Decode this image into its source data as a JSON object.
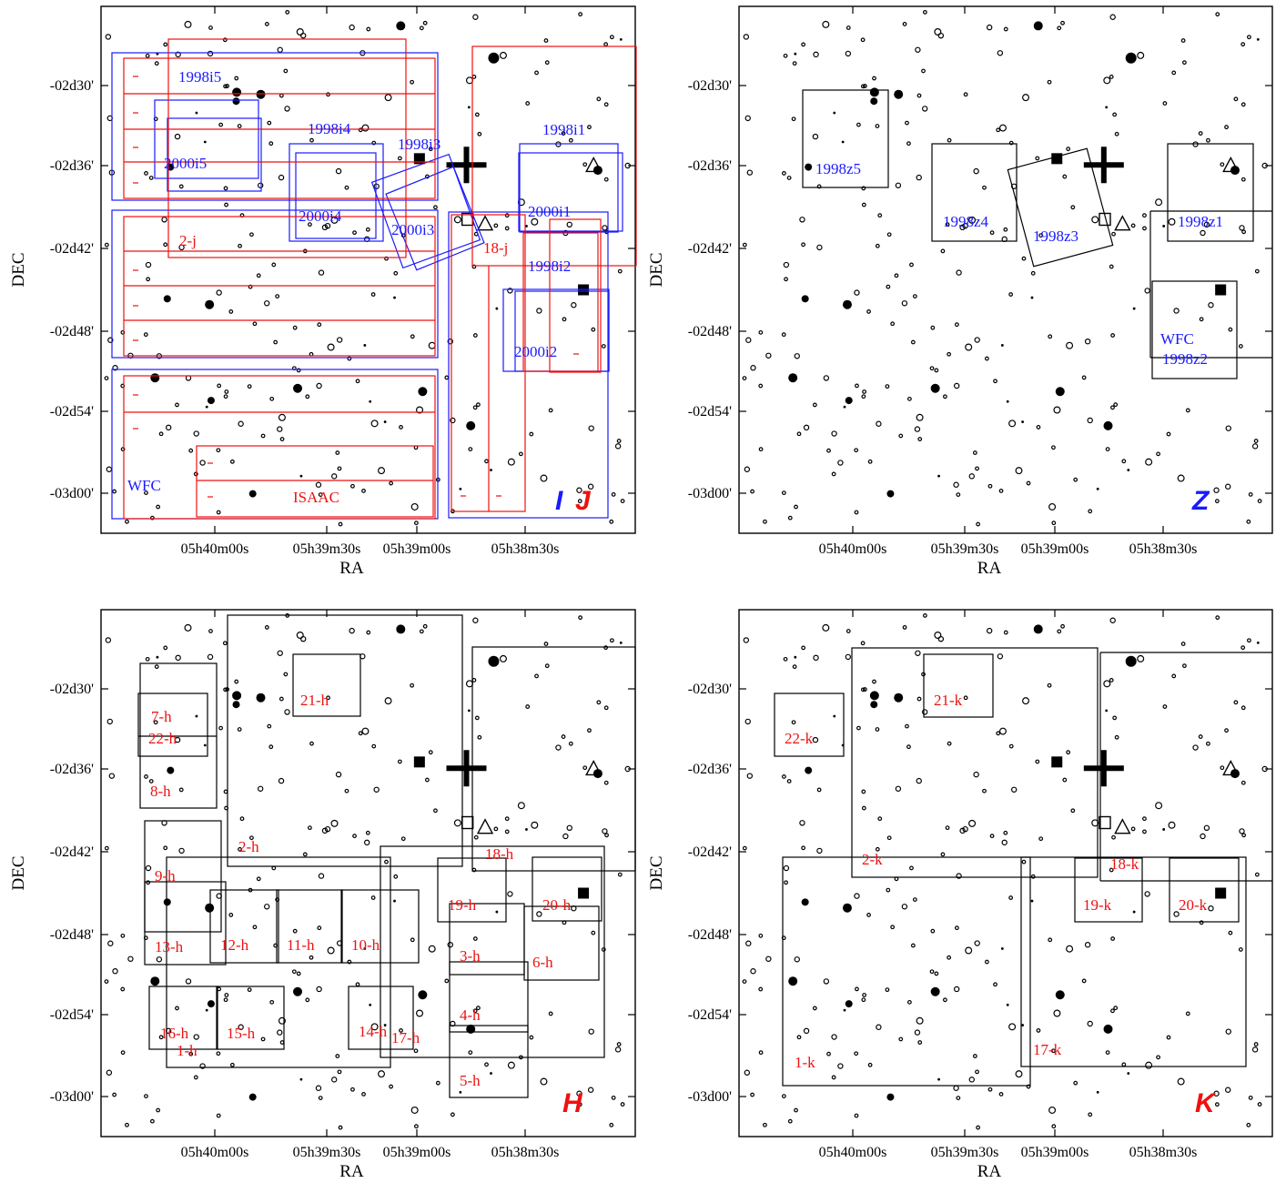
{
  "colors": {
    "blue": "#1a1aff",
    "red": "#ee1111",
    "black": "#000000"
  },
  "axes": {
    "xlabel": "RA",
    "ylabel": "DEC",
    "xticks": [
      "05h40m00s",
      "05h39m30s",
      "05h39m00s",
      "05h38m30s"
    ],
    "yticks": [
      "-02d30'",
      "-02d36'",
      "-02d42'",
      "-02d48'",
      "-02d54'",
      "-03d00'"
    ]
  },
  "panels": [
    {
      "id": "IJ",
      "bands": [
        {
          "text": "I",
          "color": "blue"
        },
        {
          "text": "J",
          "color": "red"
        }
      ],
      "fields": [
        {
          "label": "1998i5",
          "color": "blue"
        },
        {
          "label": "2000i5",
          "color": "blue"
        },
        {
          "label": "1998i4",
          "color": "blue"
        },
        {
          "label": "2000i4",
          "color": "blue"
        },
        {
          "label": "1998i3",
          "color": "blue"
        },
        {
          "label": "2000i3",
          "color": "blue"
        },
        {
          "label": "1998i1",
          "color": "blue"
        },
        {
          "label": "2000i1",
          "color": "blue"
        },
        {
          "label": "1998i2",
          "color": "blue"
        },
        {
          "label": "2000i2",
          "color": "blue"
        },
        {
          "label": "WFC",
          "color": "blue"
        },
        {
          "label": "2-j",
          "color": "red"
        },
        {
          "label": "18-j",
          "color": "red"
        },
        {
          "label": "ISAAC",
          "color": "red"
        }
      ]
    },
    {
      "id": "Z",
      "bands": [
        {
          "text": "Z",
          "color": "blue"
        }
      ],
      "fields": [
        {
          "label": "1998z5",
          "color": "blue"
        },
        {
          "label": "1998z4",
          "color": "blue"
        },
        {
          "label": "1998z3",
          "color": "blue"
        },
        {
          "label": "1998z1",
          "color": "blue"
        },
        {
          "label": "WFC",
          "color": "blue"
        },
        {
          "label": "1998z2",
          "color": "blue"
        }
      ]
    },
    {
      "id": "H",
      "bands": [
        {
          "text": "H",
          "color": "red"
        }
      ],
      "fields": [
        {
          "label": "7-h",
          "color": "red"
        },
        {
          "label": "22-h",
          "color": "red"
        },
        {
          "label": "8-h",
          "color": "red"
        },
        {
          "label": "21-h",
          "color": "red"
        },
        {
          "label": "2-h",
          "color": "red"
        },
        {
          "label": "18-h",
          "color": "red"
        },
        {
          "label": "9-h",
          "color": "red"
        },
        {
          "label": "19-h",
          "color": "red"
        },
        {
          "label": "20-h",
          "color": "red"
        },
        {
          "label": "13-h",
          "color": "red"
        },
        {
          "label": "12-h",
          "color": "red"
        },
        {
          "label": "11-h",
          "color": "red"
        },
        {
          "label": "10-h",
          "color": "red"
        },
        {
          "label": "3-h",
          "color": "red"
        },
        {
          "label": "6-h",
          "color": "red"
        },
        {
          "label": "4-h",
          "color": "red"
        },
        {
          "label": "16-h",
          "color": "red"
        },
        {
          "label": "15-h",
          "color": "red"
        },
        {
          "label": "1-h",
          "color": "red"
        },
        {
          "label": "14-h",
          "color": "red"
        },
        {
          "label": "17-h",
          "color": "red"
        },
        {
          "label": "5-h",
          "color": "red"
        }
      ]
    },
    {
      "id": "K",
      "bands": [
        {
          "text": "K",
          "color": "red"
        }
      ],
      "fields": [
        {
          "label": "22-k",
          "color": "red"
        },
        {
          "label": "21-k",
          "color": "red"
        },
        {
          "label": "2-k",
          "color": "red"
        },
        {
          "label": "18-k",
          "color": "red"
        },
        {
          "label": "19-k",
          "color": "red"
        },
        {
          "label": "20-k",
          "color": "red"
        },
        {
          "label": "1-k",
          "color": "red"
        },
        {
          "label": "17-k",
          "color": "red"
        }
      ]
    }
  ]
}
